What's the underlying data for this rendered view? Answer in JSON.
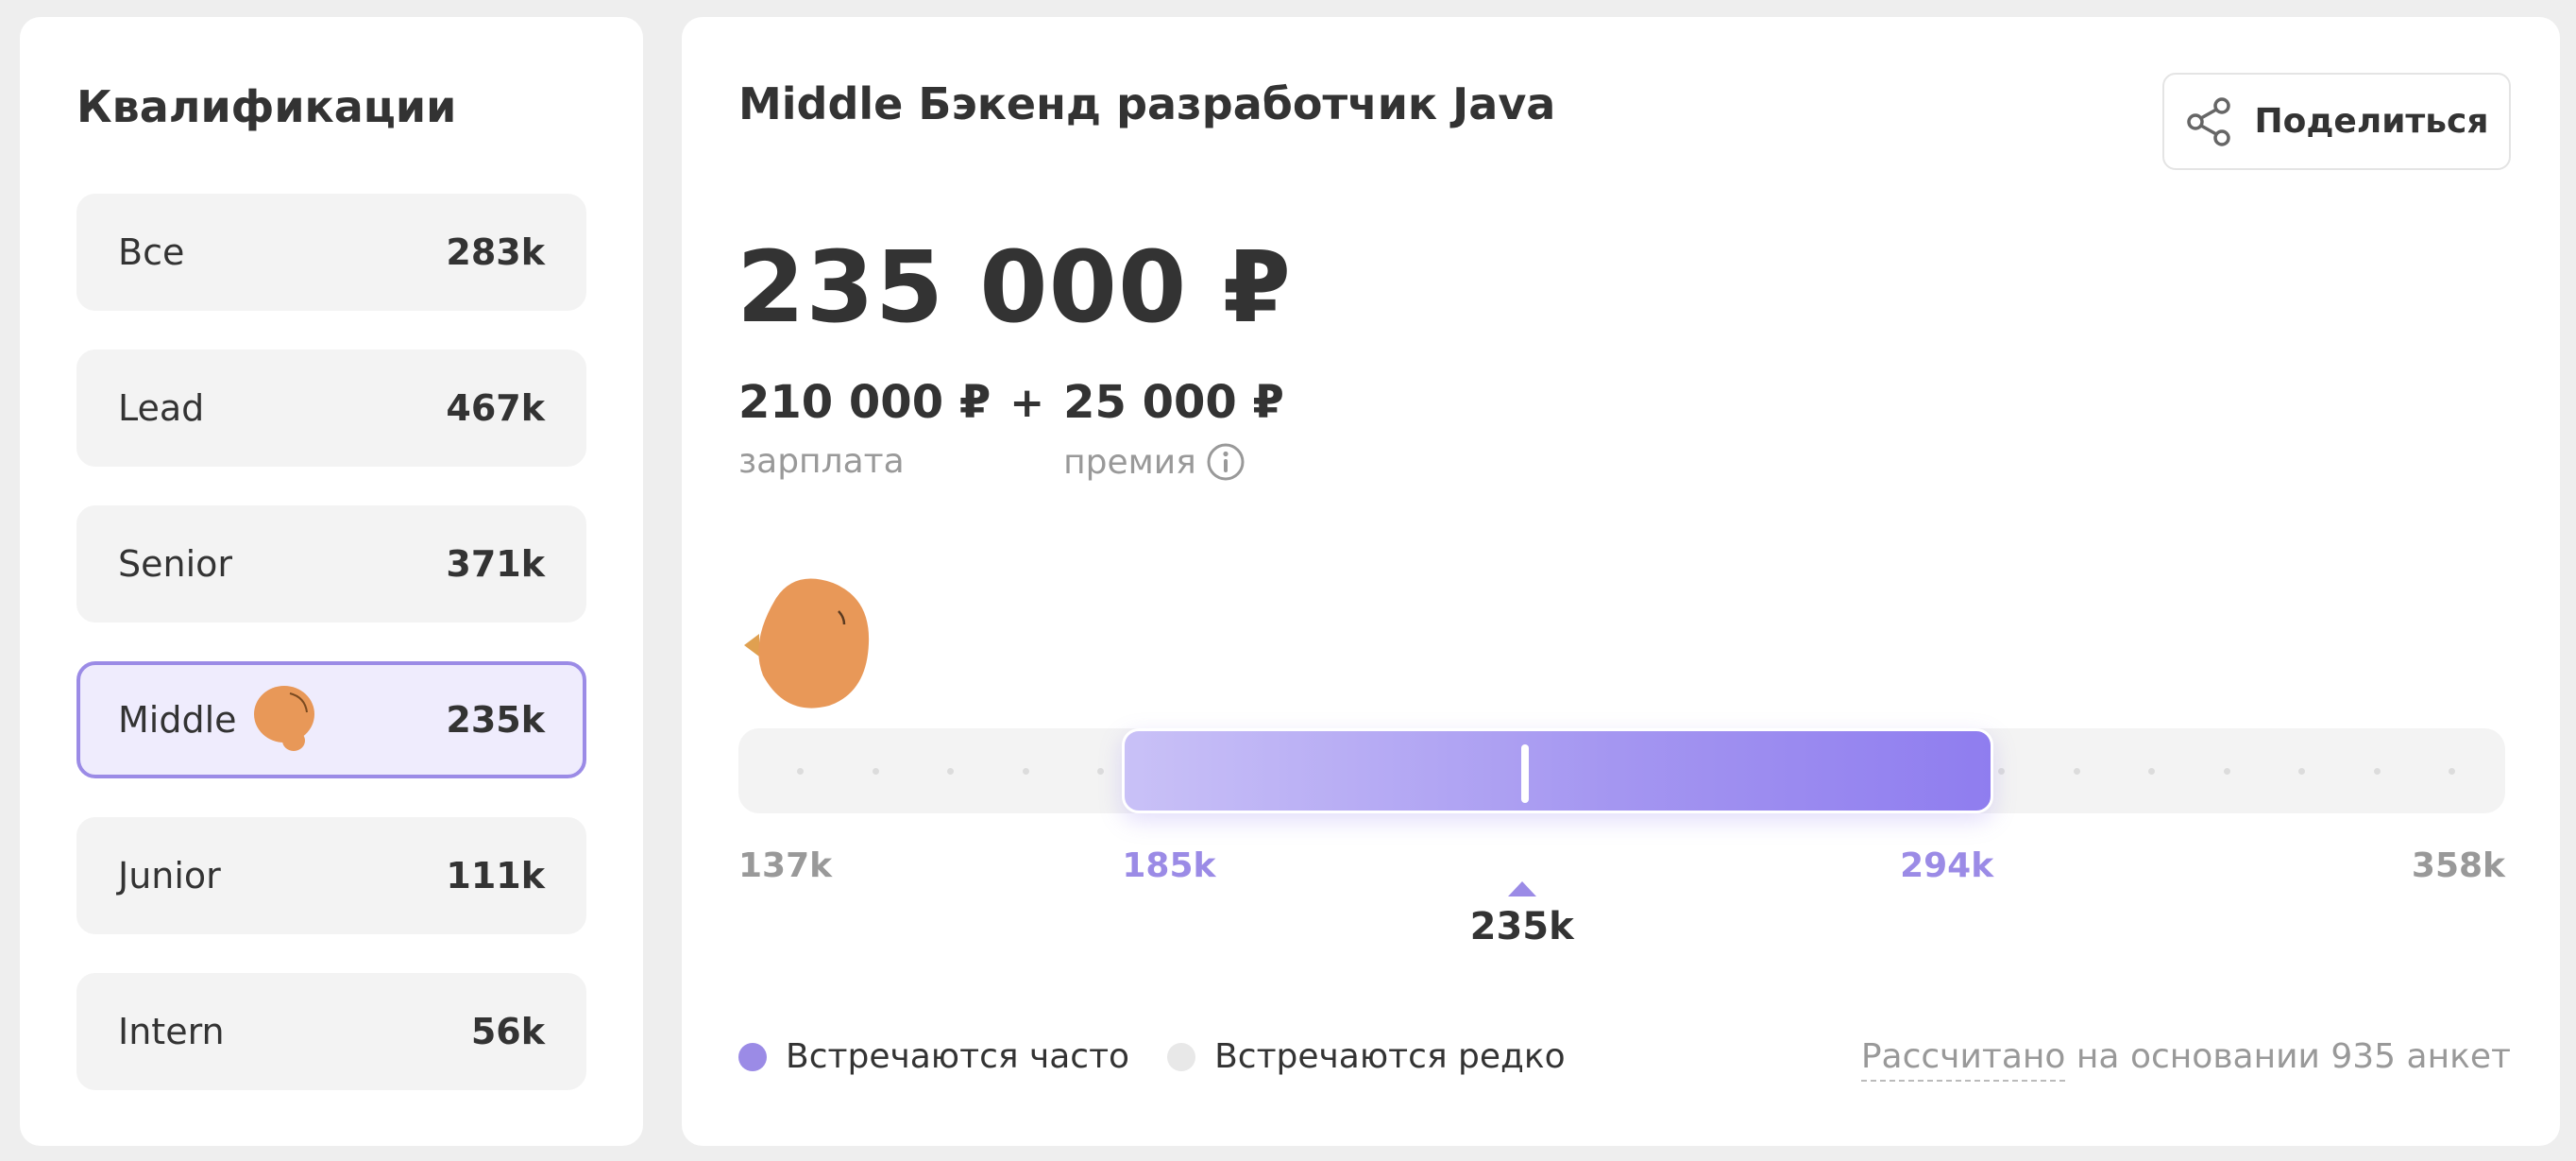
{
  "sidebar": {
    "title": "Квалификации",
    "items": [
      {
        "label": "Все",
        "value": "283k"
      },
      {
        "label": "Lead",
        "value": "467k"
      },
      {
        "label": "Senior",
        "value": "371k"
      },
      {
        "label": "Middle",
        "value": "235k",
        "selected": true
      },
      {
        "label": "Junior",
        "value": "111k"
      },
      {
        "label": "Intern",
        "value": "56k"
      }
    ]
  },
  "main": {
    "title": "Middle Бэкенд разработчик Java",
    "share_label": "Поделиться",
    "total": "235 000 ₽",
    "salary_value": "210 000 ₽",
    "salary_label": "зарплата",
    "plus": "+",
    "bonus_value": "25 000 ₽",
    "bonus_label": "премия",
    "range": {
      "min": 137,
      "max": 358,
      "frequent_from": 185,
      "frequent_to": 294,
      "median": 235,
      "min_label": "137k",
      "from_label": "185k",
      "to_label": "294k",
      "max_label": "358k",
      "median_label": "235k"
    },
    "legend": {
      "frequent": "Встречаются часто",
      "rare": "Встречаются редко"
    },
    "footnote_link": "Рассчитано",
    "footnote_rest": " на основании 935 анкет"
  },
  "colors": {
    "accent": "#9b8be6",
    "rare_dot": "#e8e8e8",
    "mascot": "#e89858"
  },
  "icons": {
    "share": "share-icon",
    "info": "info-icon",
    "mascot": "mascot-icon"
  }
}
